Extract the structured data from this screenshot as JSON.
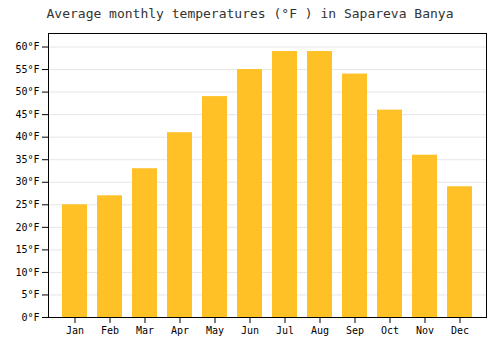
{
  "chart_data": {
    "type": "bar",
    "title": "Average monthly temperatures (°F ) in Sapareva Banya",
    "categories": [
      "Jan",
      "Feb",
      "Mar",
      "Apr",
      "May",
      "Jun",
      "Jul",
      "Aug",
      "Sep",
      "Oct",
      "Nov",
      "Dec"
    ],
    "values": [
      25,
      27,
      33,
      41,
      49,
      55,
      59,
      59,
      54,
      46,
      36,
      29
    ],
    "color": "#FFC125",
    "ylim": [
      0,
      63
    ],
    "yticks": [
      {
        "value": 0,
        "label": "0°F"
      },
      {
        "value": 5,
        "label": "5°F"
      },
      {
        "value": 10,
        "label": "10°F"
      },
      {
        "value": 15,
        "label": "15°F"
      },
      {
        "value": 20,
        "label": "20°F"
      },
      {
        "value": 25,
        "label": "25°F"
      },
      {
        "value": 30,
        "label": "30°F"
      },
      {
        "value": 35,
        "label": "35°F"
      },
      {
        "value": 40,
        "label": "40°F"
      },
      {
        "value": 45,
        "label": "45°F"
      },
      {
        "value": 50,
        "label": "50°F"
      },
      {
        "value": 55,
        "label": "55°F"
      },
      {
        "value": 60,
        "label": "60°F"
      }
    ],
    "grid": true
  }
}
